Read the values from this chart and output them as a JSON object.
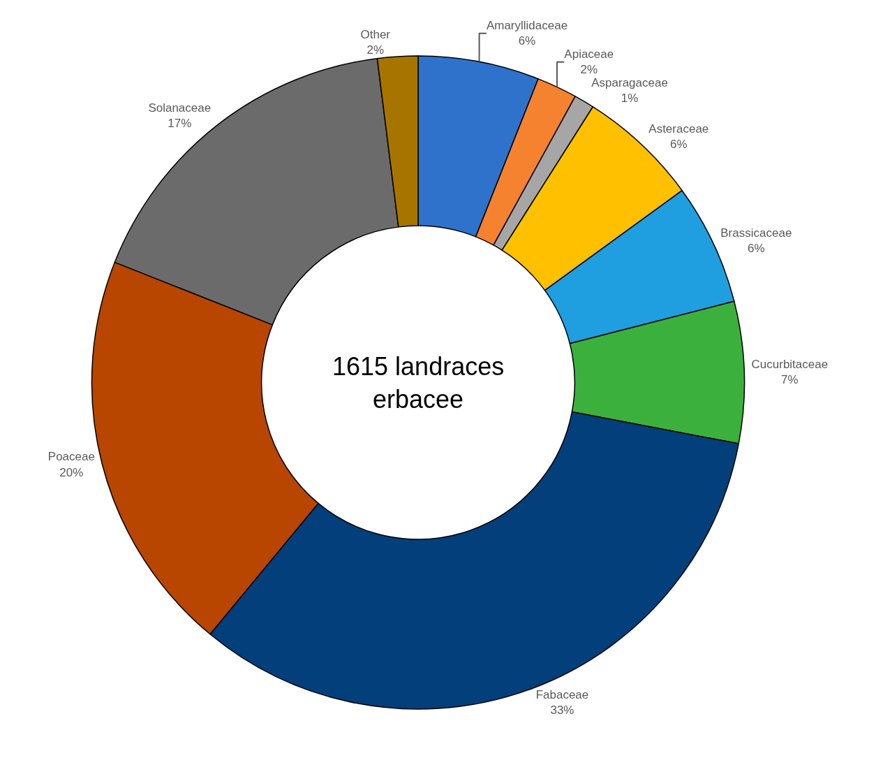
{
  "chart_data": {
    "type": "donut",
    "categories": [
      "Amaryllidaceae",
      "Apiaceae",
      "Asparagaceae",
      "Asteraceae",
      "Brassicaceae",
      "Cucurbitaceae",
      "Fabaceae",
      "Poaceae",
      "Solanaceae",
      "Other"
    ],
    "values": [
      6,
      2,
      1,
      6,
      6,
      7,
      33,
      20,
      17,
      2
    ],
    "value_labels": [
      "6%",
      "2%",
      "1%",
      "6%",
      "6%",
      "7%",
      "33%",
      "20%",
      "17%",
      "2%"
    ],
    "colors": [
      "#2e72cc",
      "#f5822f",
      "#a6a6a6",
      "#ffc000",
      "#1f9ee0",
      "#3cb03c",
      "#033f7a",
      "#b84500",
      "#6b6b6b",
      "#a87400"
    ],
    "annotations": [
      "1615 landraces\nerbacee"
    ],
    "legend": false
  }
}
